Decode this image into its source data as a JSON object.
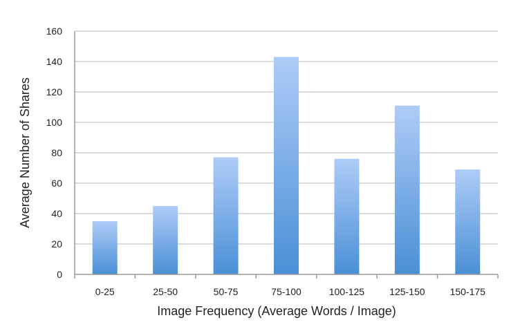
{
  "chart_data": {
    "type": "bar",
    "title": "",
    "xlabel": "Image Frequency (Average Words / Image)",
    "ylabel": "Average Number of Shares",
    "categories": [
      "0-25",
      "25-50",
      "50-75",
      "75-100",
      "100-125",
      "125-150",
      "150-175"
    ],
    "values": [
      35,
      45,
      77,
      143,
      76,
      111,
      69
    ],
    "ylim": [
      0,
      160
    ],
    "yticks": [
      "0",
      "20",
      "40",
      "60",
      "80",
      "100",
      "120",
      "140",
      "160"
    ],
    "grid": true,
    "legend": "none",
    "colors": {
      "bar_top": "#aeccf7",
      "bar_bottom": "#4a8fd6",
      "grid": "#cfcfcf",
      "axis": "#9a9a9a"
    }
  }
}
